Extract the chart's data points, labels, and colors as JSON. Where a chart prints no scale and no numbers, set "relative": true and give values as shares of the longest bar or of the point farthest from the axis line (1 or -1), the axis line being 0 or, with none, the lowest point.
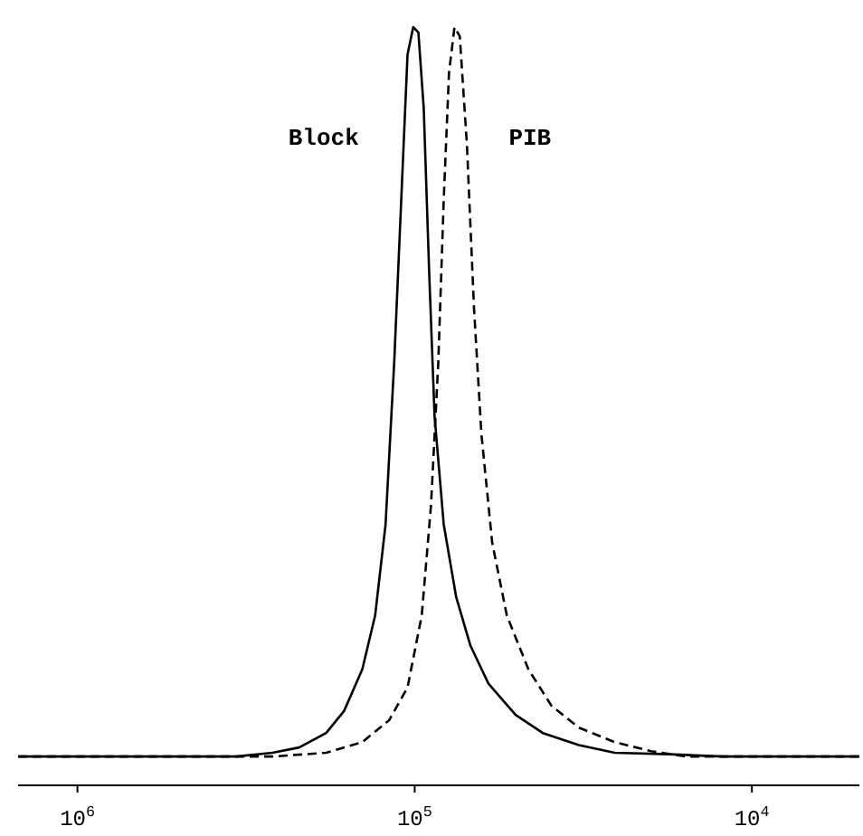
{
  "chart_data": {
    "type": "line",
    "relative": true,
    "log": "x",
    "xlim": [
      1500000,
      4800
    ],
    "xticks": [
      {
        "value": 1000000,
        "label": "10$^{6}$"
      },
      {
        "value": 100000,
        "label": "10$^{5}$"
      },
      {
        "value": 10000,
        "label": "10$^{4}$"
      }
    ],
    "grid": false,
    "series": [
      {
        "name": "Block",
        "color": "#000000",
        "line_style": "solid",
        "x": [
          1500000,
          338000,
          264000,
          220000,
          183000,
          162000,
          143000,
          131000,
          122000,
          115000,
          109000,
          105000,
          101000,
          97500,
          94000,
          90600,
          87300,
          82000,
          75300,
          68300,
          60400,
          50200,
          41700,
          32600,
          25500,
          17600,
          12200,
          4800
        ],
        "values": [
          0.038,
          0.038,
          0.043,
          0.05,
          0.069,
          0.098,
          0.153,
          0.224,
          0.344,
          0.558,
          0.797,
          0.964,
          1,
          0.993,
          0.893,
          0.678,
          0.487,
          0.344,
          0.248,
          0.184,
          0.134,
          0.093,
          0.069,
          0.053,
          0.043,
          0.041,
          0.038,
          0.038
        ]
      },
      {
        "name": "PIB",
        "color": "#000000",
        "line_style": "dashed",
        "x": [
          1500000,
          264000,
          183000,
          143000,
          119000,
          105000,
          95300,
          89500,
          85100,
          82000,
          79100,
          76200,
          73500,
          70000,
          66700,
          63400,
          58900,
          53300,
          46000,
          39300,
          32600,
          25500,
          19900,
          15600,
          4800
        ],
        "values": [
          0.038,
          0.038,
          0.043,
          0.057,
          0.086,
          0.129,
          0.224,
          0.368,
          0.558,
          0.773,
          0.94,
          1,
          0.988,
          0.845,
          0.63,
          0.463,
          0.32,
          0.224,
          0.153,
          0.105,
          0.076,
          0.057,
          0.045,
          0.038,
          0.038
        ]
      }
    ]
  }
}
